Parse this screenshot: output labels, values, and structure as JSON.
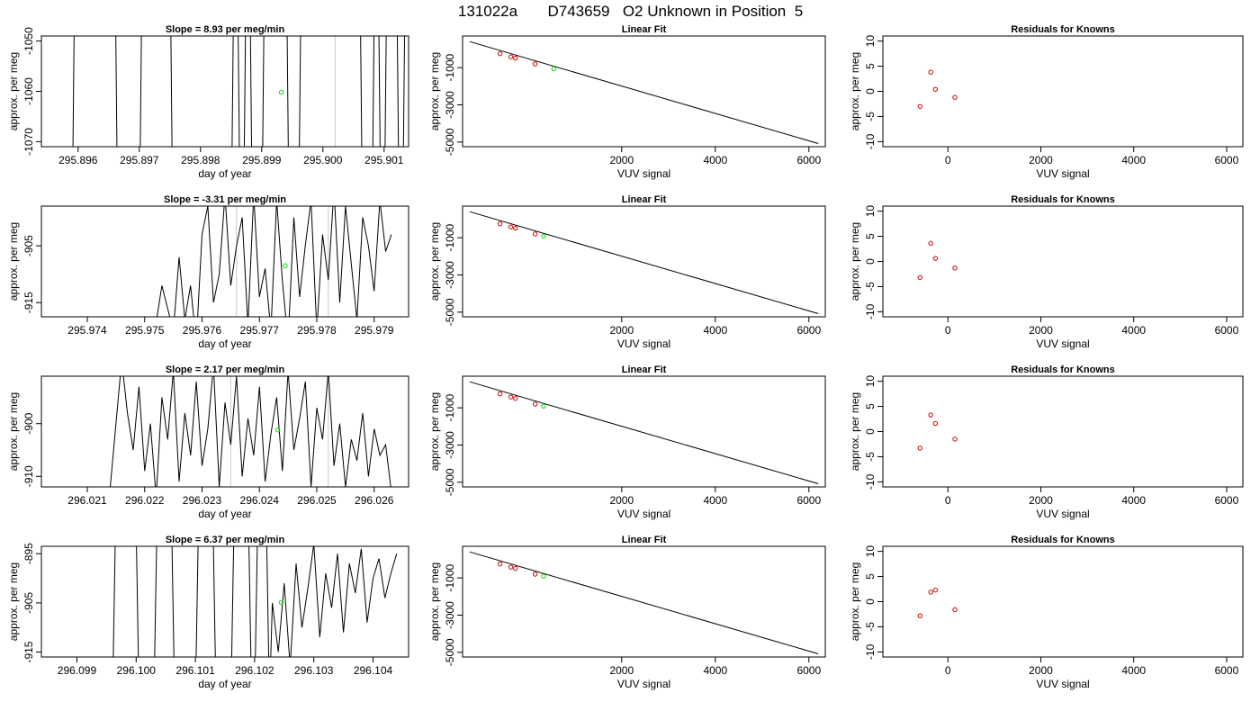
{
  "header": {
    "run_id": "131022a",
    "cylinder_id": "D743659",
    "description": "O2 Unknown in Position  5"
  },
  "colors": {
    "trace": "#000000",
    "unknown_point": "#00dd00",
    "known_point": "#cc0000",
    "marker_line": "#c8c8c8"
  },
  "chart_data": [
    {
      "type": "line",
      "panel": "trace",
      "row": 1,
      "title": "Slope =  8.93  per meg/min",
      "xlabel": "day of year",
      "ylabel": "approx. per meg",
      "xlim": [
        295.8954,
        295.9014
      ],
      "ylim": [
        -1071,
        -1049
      ],
      "xticks": [
        "295.896",
        "295.897",
        "295.898",
        "295.899",
        "295.900",
        "295.901"
      ],
      "yticks": [
        "-1050",
        "-1060",
        "-1070"
      ],
      "trace_x": [
        295.8959,
        295.89595,
        295.8966,
        295.89665,
        295.897,
        295.89705,
        295.8975,
        295.89755,
        295.8985,
        295.89855,
        295.8986,
        295.89865,
        295.8987,
        295.89875,
        295.8988,
        295.89885,
        295.899,
        295.89905,
        295.8994,
        295.89945,
        295.8996,
        295.89965,
        295.9006,
        295.90065,
        295.9008,
        295.90085,
        295.9009,
        295.90095,
        295.901,
        295.90105,
        295.9012,
        295.90125,
        295.9013,
        295.90135
      ],
      "trace_y": [
        -1090,
        -1030,
        -1030,
        -1090,
        -1090,
        -1030,
        -1030,
        -1090,
        -1090,
        -1030,
        -1030,
        -1090,
        -1090,
        -1030,
        -1030,
        -1090,
        -1090,
        -1030,
        -1030,
        -1090,
        -1090,
        -1030,
        -1030,
        -1090,
        -1090,
        -1030,
        -1030,
        -1090,
        -1090,
        -1030,
        -1030,
        -1090,
        -1090,
        -1030
      ],
      "marker_x": [
        295.9002
      ],
      "unknown_point": {
        "x": 295.89932,
        "y": -1060.2
      }
    },
    {
      "type": "line",
      "panel": "trace",
      "row": 2,
      "title": "Slope =  -3.31  per meg/min",
      "xlabel": "day of year",
      "ylabel": "approx. per meg",
      "xlim": [
        295.9732,
        295.9796
      ],
      "ylim": [
        -917.5,
        -898
      ],
      "xticks": [
        "295.974",
        "295.975",
        "295.976",
        "295.977",
        "295.978",
        "295.979"
      ],
      "yticks": [
        "-905",
        "-915"
      ],
      "trace_x": [
        295.9751,
        295.9753,
        295.9754,
        295.9755,
        295.9756,
        295.9757,
        295.9758,
        295.9759,
        295.976,
        295.9761,
        295.9762,
        295.9763,
        295.9764,
        295.9765,
        295.9766,
        295.9767,
        295.9768,
        295.9769,
        295.977,
        295.9771,
        295.9772,
        295.9773,
        295.9774,
        295.9775,
        295.9776,
        295.9777,
        295.9778,
        295.9779,
        295.978,
        295.9781,
        295.9782,
        295.9783,
        295.9784,
        295.9785,
        295.9786,
        295.9787,
        295.9788,
        295.9789,
        295.979,
        295.9791,
        295.9792,
        295.9793
      ],
      "trace_y": [
        -925,
        -912,
        -916,
        -920,
        -907,
        -918,
        -912,
        -922,
        -903,
        -898,
        -915,
        -910,
        -896,
        -912,
        -905,
        -900,
        -919,
        -896,
        -914,
        -909,
        -920,
        -897,
        -911,
        -922,
        -900,
        -914,
        -905,
        -897,
        -920,
        -903,
        -911,
        -895,
        -915,
        -898,
        -908,
        -918,
        -900,
        -905,
        -913,
        -897,
        -906,
        -903
      ],
      "marker_x": [
        295.9766,
        295.9782
      ],
      "unknown_point": {
        "x": 295.97745,
        "y": -908.5
      }
    },
    {
      "type": "line",
      "panel": "trace",
      "row": 3,
      "title": "Slope =  2.17  per meg/min",
      "xlabel": "day of year",
      "ylabel": "approx. per meg",
      "xlim": [
        296.0202,
        296.0266
      ],
      "ylim": [
        -912,
        -891
      ],
      "xticks": [
        "296.021",
        "296.022",
        "296.023",
        "296.024",
        "296.025",
        "296.026"
      ],
      "yticks": [
        "-900",
        "-910"
      ],
      "trace_x": [
        296.0214,
        296.0216,
        296.0217,
        296.0218,
        296.0219,
        296.022,
        296.0221,
        296.0222,
        296.0223,
        296.0224,
        296.0225,
        296.0226,
        296.0227,
        296.0228,
        296.0229,
        296.023,
        296.0231,
        296.0232,
        296.0233,
        296.0234,
        296.0235,
        296.0236,
        296.0237,
        296.0238,
        296.0239,
        296.024,
        296.0241,
        296.0242,
        296.0243,
        296.0244,
        296.0245,
        296.0246,
        296.0247,
        296.0248,
        296.0249,
        296.025,
        296.0251,
        296.0252,
        296.0253,
        296.0254,
        296.0255,
        296.0256,
        296.0257,
        296.0258,
        296.0259,
        296.026,
        296.0261,
        296.0262,
        296.0263
      ],
      "trace_y": [
        -912,
        -888,
        -898,
        -905,
        -893,
        -909,
        -900,
        -914,
        -895,
        -903,
        -890,
        -911,
        -898,
        -906,
        -892,
        -908,
        -901,
        -889,
        -912,
        -896,
        -904,
        -891,
        -910,
        -899,
        -906,
        -893,
        -911,
        -902,
        -895,
        -909,
        -890,
        -905,
        -899,
        -892,
        -912,
        -897,
        -903,
        -890,
        -908,
        -900,
        -912,
        -903,
        -907,
        -898,
        -910,
        -901,
        -906,
        -904,
        -913
      ],
      "marker_x": [
        296.0235,
        296.0252
      ],
      "unknown_point": {
        "x": 296.02432,
        "y": -901.2
      }
    },
    {
      "type": "line",
      "panel": "trace",
      "row": 4,
      "title": "Slope =  6.37  per meg/min",
      "xlabel": "day of year",
      "ylabel": "approx. per meg",
      "xlim": [
        296.0984,
        296.1046
      ],
      "ylim": [
        -916,
        -893.5
      ],
      "xticks": [
        "296.099",
        "296.100",
        "296.101",
        "296.102",
        "296.103",
        "296.104"
      ],
      "yticks": [
        "-895",
        "-905",
        "-915"
      ],
      "trace_x": [
        296.0996,
        296.09965,
        296.1,
        296.10005,
        296.1003,
        296.10035,
        296.1006,
        296.10065,
        296.101,
        296.10105,
        296.1013,
        296.10135,
        296.1016,
        296.10165,
        296.1019,
        296.10195,
        296.102,
        296.10205,
        296.1022,
        296.10225,
        296.1023,
        296.1024,
        296.1025,
        296.1026,
        296.1027,
        296.1028,
        296.1029,
        296.103,
        296.1031,
        296.1032,
        296.1033,
        296.1034,
        296.1035,
        296.1036,
        296.1037,
        296.1038,
        296.1039,
        296.104,
        296.1041,
        296.1042,
        296.1043,
        296.1044
      ],
      "trace_y": [
        -925,
        -890,
        -890,
        -925,
        -925,
        -890,
        -890,
        -925,
        -925,
        -890,
        -890,
        -925,
        -925,
        -890,
        -890,
        -925,
        -925,
        -890,
        -890,
        -925,
        -905,
        -915,
        -901,
        -918,
        -897,
        -910,
        -902,
        -893,
        -912,
        -899,
        -906,
        -895,
        -911,
        -897,
        -903,
        -894,
        -909,
        -900,
        -896,
        -904,
        -899,
        -895
      ],
      "marker_x": [],
      "unknown_point": {
        "x": 296.10245,
        "y": -904.9
      }
    },
    {
      "type": "scatter",
      "panel": "fit",
      "row": 1,
      "title": "Linear Fit",
      "xlabel": "VUV signal",
      "ylabel": "approx. per meg",
      "xlim": [
        -1400,
        6350
      ],
      "ylim": [
        -5250,
        700
      ],
      "xticks": [
        2000,
        4000,
        6000
      ],
      "yticks": [
        -1000,
        -3000,
        -5000
      ],
      "fit_line": {
        "x": [
          -1250,
          6200
        ],
        "y": [
          400,
          -5080
        ]
      },
      "knowns": {
        "x": [
          -600,
          -370,
          -270,
          150
        ],
        "y": [
          -250,
          -420,
          -490,
          -800
        ]
      },
      "unknown": {
        "x": 550,
        "y": -1060
      }
    },
    {
      "type": "scatter",
      "panel": "fit",
      "row": 2,
      "title": "Linear Fit",
      "xlabel": "VUV signal",
      "ylabel": "approx. per meg",
      "xlim": [
        -1400,
        6350
      ],
      "ylim": [
        -5250,
        700
      ],
      "xticks": [
        2000,
        4000,
        6000
      ],
      "yticks": [
        -1000,
        -3000,
        -5000
      ],
      "fit_line": {
        "x": [
          -1250,
          6200
        ],
        "y": [
          400,
          -5080
        ]
      },
      "knowns": {
        "x": [
          -600,
          -370,
          -270,
          150
        ],
        "y": [
          -250,
          -420,
          -490,
          -800
        ]
      },
      "unknown": {
        "x": 330,
        "y": -910
      }
    },
    {
      "type": "scatter",
      "panel": "fit",
      "row": 3,
      "title": "Linear Fit",
      "xlabel": "VUV signal",
      "ylabel": "approx. per meg",
      "xlim": [
        -1400,
        6350
      ],
      "ylim": [
        -5250,
        700
      ],
      "xticks": [
        2000,
        4000,
        6000
      ],
      "yticks": [
        -1000,
        -3000,
        -5000
      ],
      "fit_line": {
        "x": [
          -1250,
          6200
        ],
        "y": [
          400,
          -5080
        ]
      },
      "knowns": {
        "x": [
          -600,
          -370,
          -270,
          150
        ],
        "y": [
          -250,
          -420,
          -490,
          -800
        ]
      },
      "unknown": {
        "x": 330,
        "y": -910
      }
    },
    {
      "type": "scatter",
      "panel": "fit",
      "row": 4,
      "title": "Linear Fit",
      "xlabel": "VUV signal",
      "ylabel": "approx. per meg",
      "xlim": [
        -1400,
        6350
      ],
      "ylim": [
        -5250,
        700
      ],
      "xticks": [
        2000,
        4000,
        6000
      ],
      "yticks": [
        -1000,
        -3000,
        -5000
      ],
      "fit_line": {
        "x": [
          -1250,
          6200
        ],
        "y": [
          400,
          -5080
        ]
      },
      "knowns": {
        "x": [
          -600,
          -370,
          -270,
          150
        ],
        "y": [
          -250,
          -420,
          -490,
          -800
        ]
      },
      "unknown": {
        "x": 330,
        "y": -905
      }
    },
    {
      "type": "scatter",
      "panel": "residuals",
      "row": 1,
      "title": "Residuals for Knowns",
      "xlabel": "VUV signal",
      "ylabel": "approx. per meg",
      "xlim": [
        -1400,
        6350
      ],
      "ylim": [
        -11,
        11
      ],
      "xticks": [
        0,
        2000,
        4000,
        6000
      ],
      "yticks": [
        -10,
        -5,
        0,
        5,
        10
      ],
      "knowns": {
        "x": [
          -600,
          -370,
          -270,
          150
        ],
        "y": [
          -3.0,
          3.8,
          0.4,
          -1.2
        ]
      }
    },
    {
      "type": "scatter",
      "panel": "residuals",
      "row": 2,
      "title": "Residuals for Knowns",
      "xlabel": "VUV signal",
      "ylabel": "approx. per meg",
      "xlim": [
        -1400,
        6350
      ],
      "ylim": [
        -11,
        11
      ],
      "xticks": [
        0,
        2000,
        4000,
        6000
      ],
      "yticks": [
        -10,
        -5,
        0,
        5,
        10
      ],
      "knowns": {
        "x": [
          -600,
          -370,
          -270,
          150
        ],
        "y": [
          -3.2,
          3.6,
          0.6,
          -1.3
        ]
      }
    },
    {
      "type": "scatter",
      "panel": "residuals",
      "row": 3,
      "title": "Residuals for Knowns",
      "xlabel": "VUV signal",
      "ylabel": "approx. per meg",
      "xlim": [
        -1400,
        6350
      ],
      "ylim": [
        -11,
        11
      ],
      "xticks": [
        0,
        2000,
        4000,
        6000
      ],
      "yticks": [
        -10,
        -5,
        0,
        5,
        10
      ],
      "knowns": {
        "x": [
          -600,
          -370,
          -270,
          150
        ],
        "y": [
          -3.3,
          3.3,
          1.6,
          -1.5
        ]
      }
    },
    {
      "type": "scatter",
      "panel": "residuals",
      "row": 4,
      "title": "Residuals for Knowns",
      "xlabel": "VUV signal",
      "ylabel": "approx. per meg",
      "xlim": [
        -1400,
        6350
      ],
      "ylim": [
        -11,
        11
      ],
      "xticks": [
        0,
        2000,
        4000,
        6000
      ],
      "yticks": [
        -10,
        -5,
        0,
        5,
        10
      ],
      "knowns": {
        "x": [
          -600,
          -370,
          -270,
          150
        ],
        "y": [
          -2.8,
          1.9,
          2.3,
          -1.6
        ]
      }
    }
  ]
}
